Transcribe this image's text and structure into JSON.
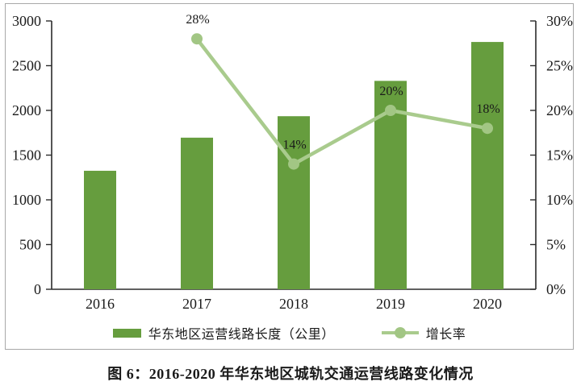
{
  "figure": {
    "caption": "图 6：2016-2020 年华东地区城轨交通运营线路变化情况"
  },
  "colors": {
    "bar": "#669D3E",
    "line": "#A9CB8D",
    "marker": "#A2C684",
    "axis": "#2b2b2b",
    "frame_border": "#a8a8a8",
    "text": "#1a1a1a"
  },
  "chart_data": {
    "type": "bar",
    "subtype": "combo-bar-line",
    "categories": [
      "2016",
      "2017",
      "2018",
      "2019",
      "2020"
    ],
    "series": [
      {
        "name": "华东地区运营线路长度（公里）",
        "type": "bar",
        "axis": "left",
        "values": [
          1325,
          1695,
          1935,
          2330,
          2765
        ]
      },
      {
        "name": "增长率",
        "type": "line",
        "axis": "right",
        "values": [
          null,
          28,
          14,
          20,
          18
        ],
        "point_labels": [
          null,
          "28%",
          "14%",
          "20%",
          "18%"
        ]
      }
    ],
    "left_axis": {
      "min": 0,
      "max": 3000,
      "step": 500,
      "ticks": [
        "0",
        "500",
        "1000",
        "1500",
        "2000",
        "2500",
        "3000"
      ]
    },
    "right_axis": {
      "min": 0,
      "max": 30,
      "step": 5,
      "ticks": [
        "0%",
        "5%",
        "10%",
        "15%",
        "20%",
        "25%",
        "30%"
      ]
    },
    "legend": [
      "华东地区运营线路长度（公里）",
      "增长率"
    ],
    "legend_position": "bottom",
    "grid": false,
    "title": "",
    "xlabel": "",
    "ylabel": ""
  }
}
